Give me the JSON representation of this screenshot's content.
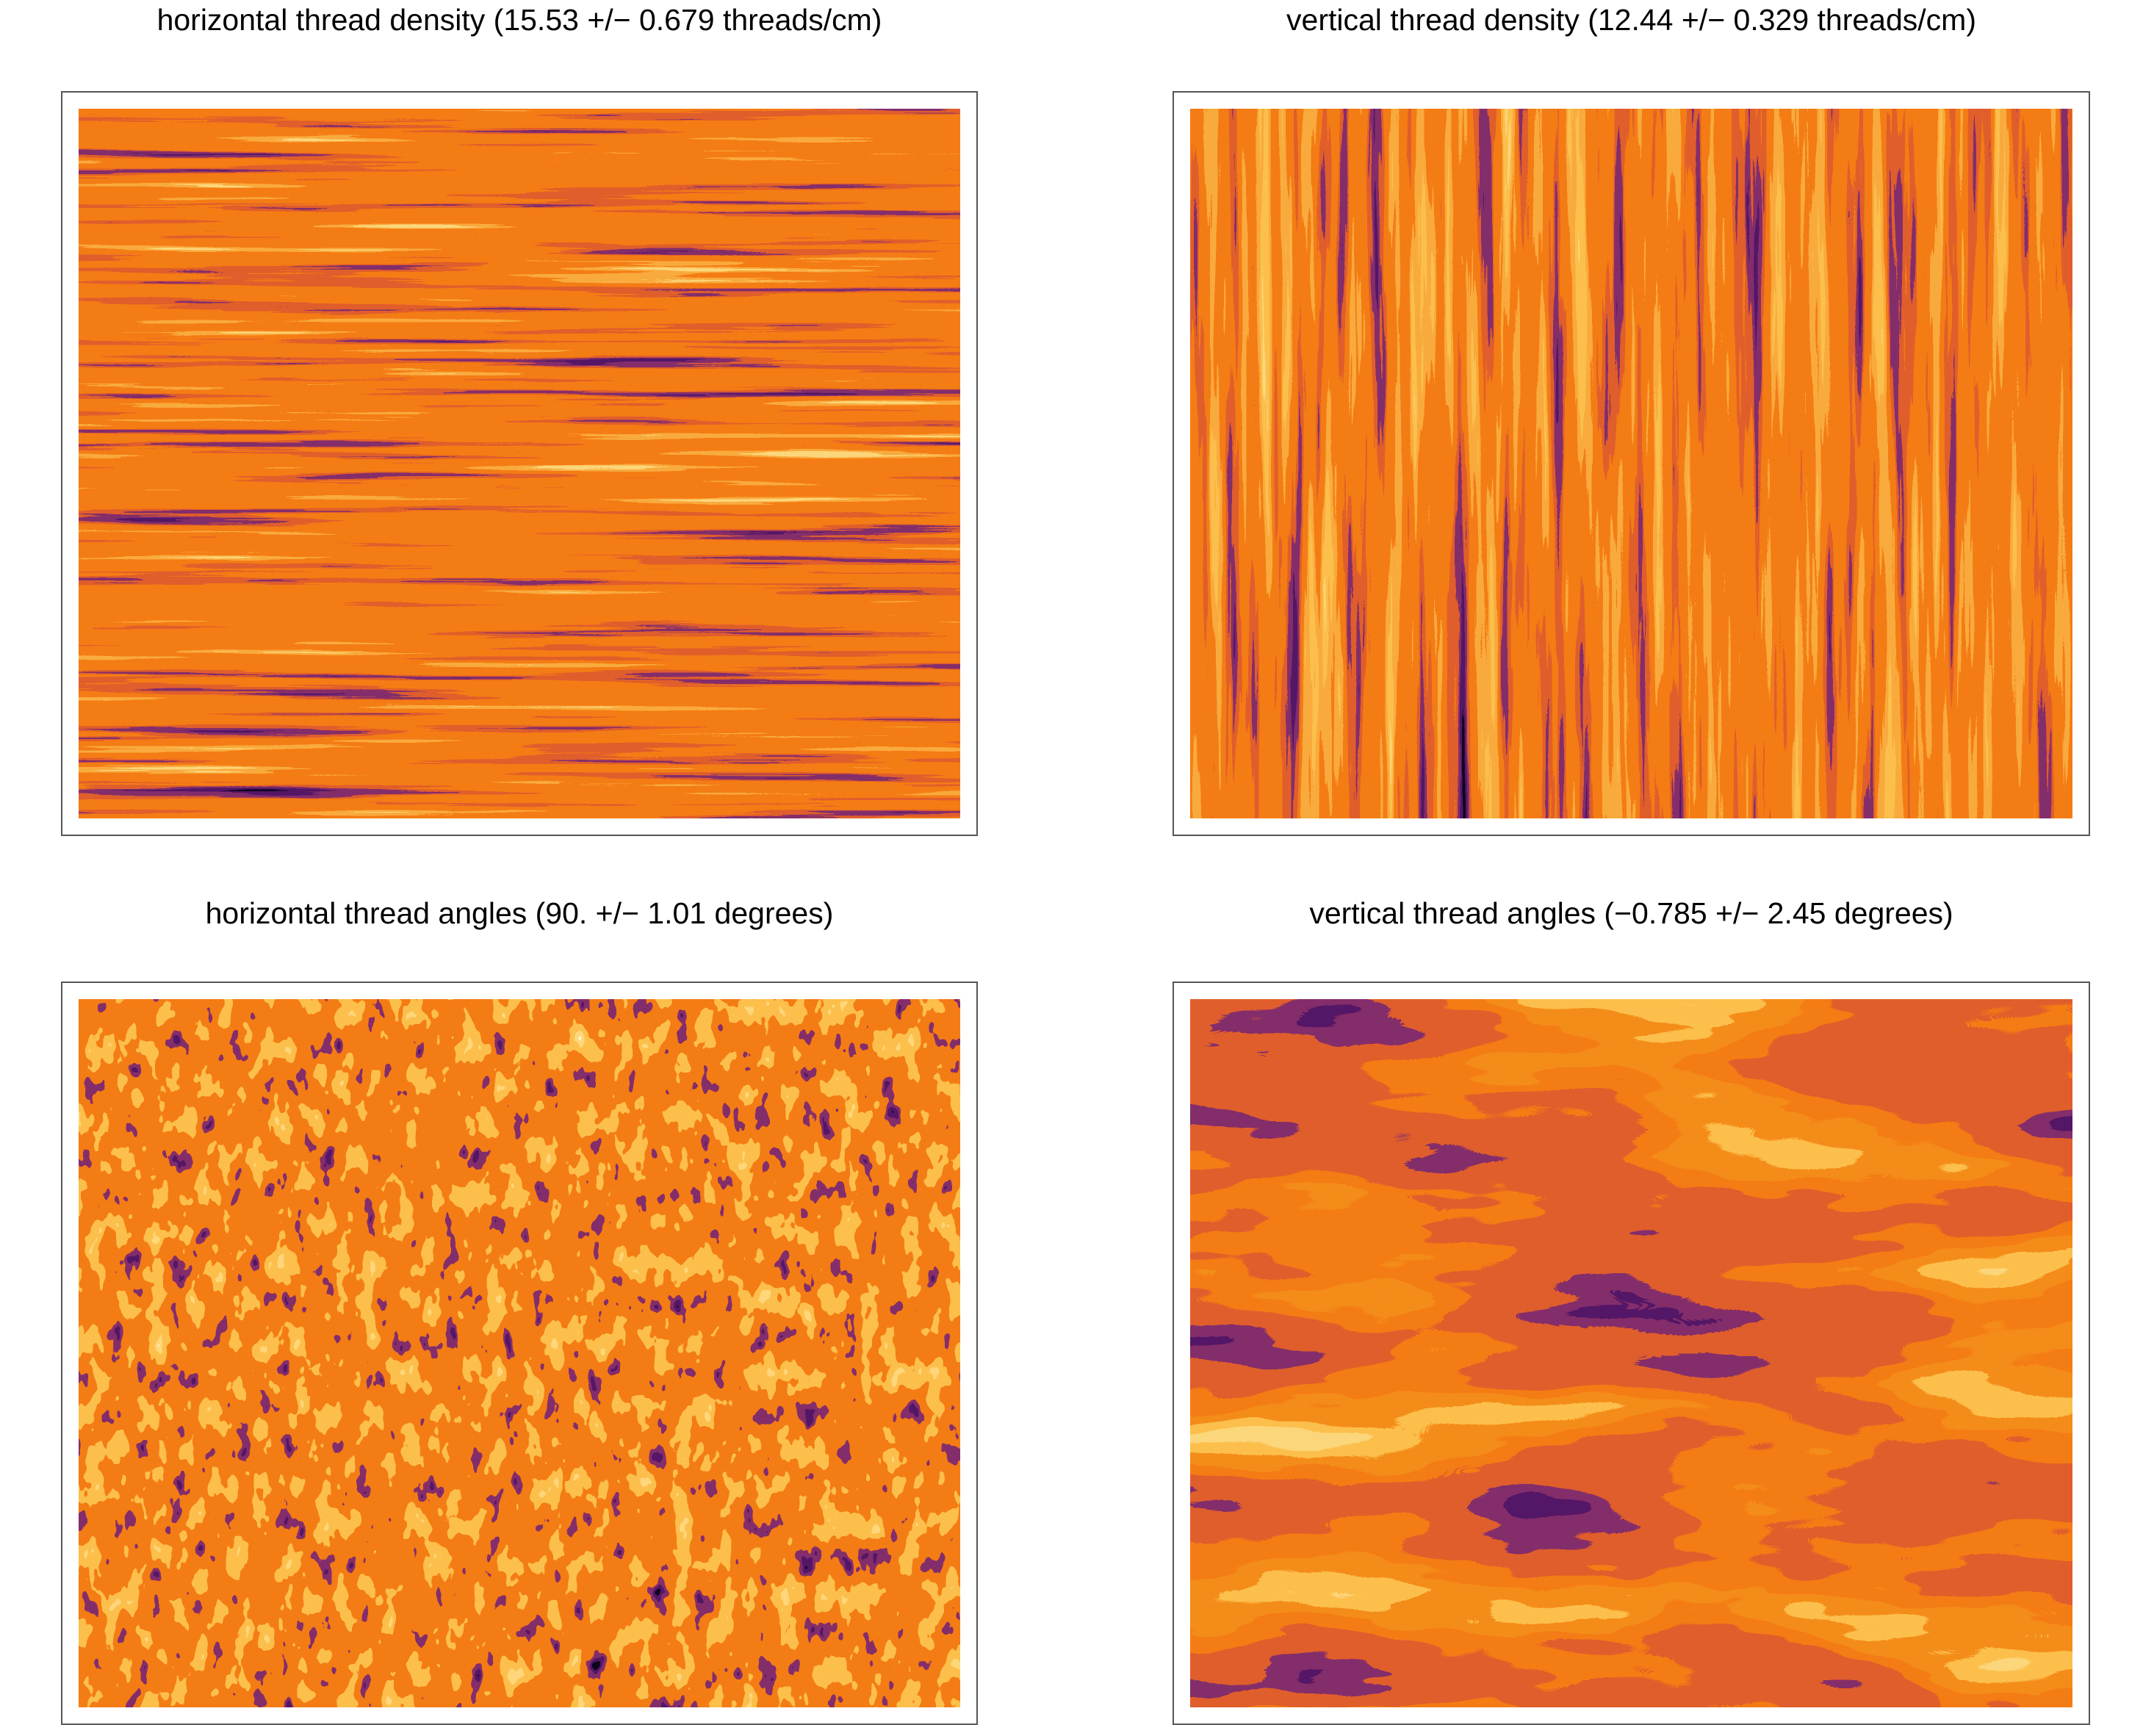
{
  "chart_data": [
    {
      "type": "heatmap",
      "title": "horizontal thread density (15.53 +/− 0.679 threads/cm)"
    },
    {
      "type": "heatmap",
      "title": "vertical thread density (12.44 +/− 0.329 threads/cm)"
    },
    {
      "type": "heatmap",
      "title": "horizontal thread angles (90. +/− 1.01 degrees)"
    },
    {
      "type": "heatmap",
      "title": "vertical thread angles (−0.785 +/− 2.45 degrees)"
    }
  ]
}
